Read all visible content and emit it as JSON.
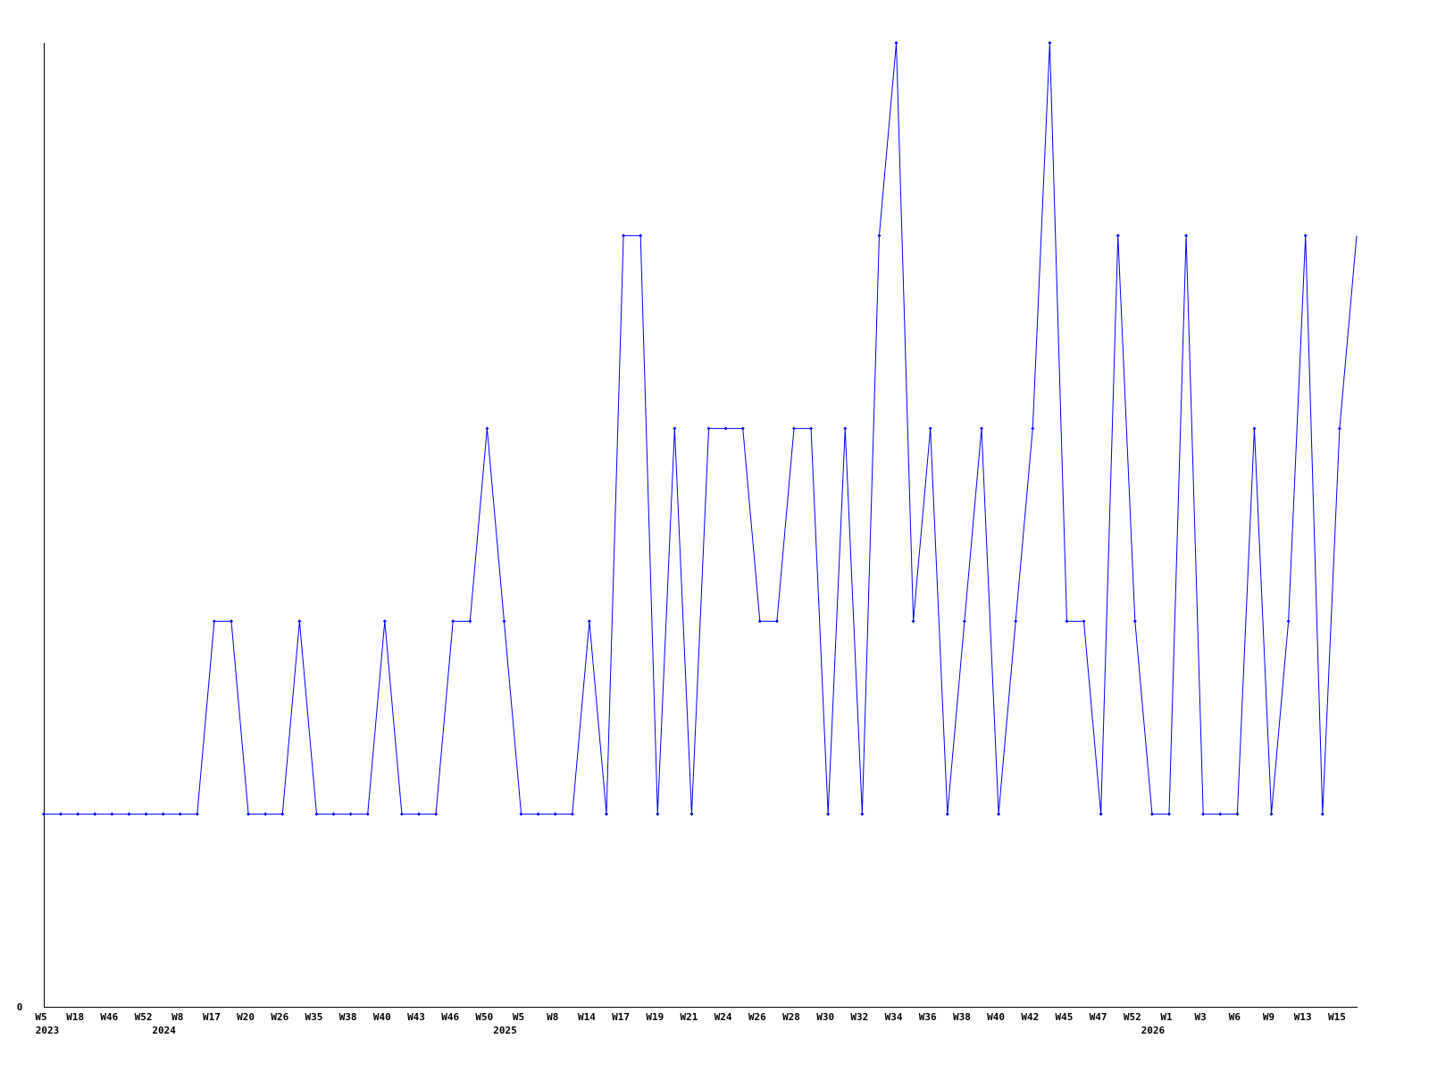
{
  "chart_data": {
    "type": "line",
    "title": "",
    "xlabel": "",
    "ylabel": "",
    "ylim": [
      0,
      5
    ],
    "y_tick_labels": [
      "0"
    ],
    "grid": false,
    "legend": "none",
    "line_color": "#0000ff",
    "axis_color": "#000000",
    "x_tick_labels": [
      "W5",
      "W18",
      "W46",
      "W52",
      "W8",
      "W17",
      "W20",
      "W26",
      "W35",
      "W38",
      "W40",
      "W43",
      "W46",
      "W50",
      "W5",
      "W8",
      "W14",
      "W17",
      "W19",
      "W21",
      "W24",
      "W26",
      "W28",
      "W30",
      "W32",
      "W34",
      "W36",
      "W38",
      "W40",
      "W42",
      "W45",
      "W47",
      "W52",
      "W1",
      "W3",
      "W6",
      "W9",
      "W13",
      "W15"
    ],
    "year_labels": [
      {
        "label": "2023",
        "index": 0
      },
      {
        "label": "2024",
        "index": 7
      },
      {
        "label": "2025",
        "index": 27
      },
      {
        "label": "2026",
        "index": 65
      }
    ],
    "values": [
      1,
      1,
      1,
      1,
      1,
      1,
      1,
      1,
      1,
      1,
      2,
      2,
      1,
      1,
      1,
      2,
      1,
      1,
      1,
      1,
      2,
      1,
      1,
      1,
      2,
      2,
      3,
      2,
      1,
      1,
      1,
      1,
      2,
      1,
      4,
      4,
      1,
      3,
      1,
      3,
      3,
      3,
      2,
      2,
      3,
      3,
      1,
      3,
      1,
      4,
      5,
      2,
      3,
      1,
      2,
      3,
      1,
      2,
      3,
      5,
      2,
      2,
      1,
      4,
      2,
      1,
      1,
      4,
      1,
      1,
      1,
      3,
      1,
      2,
      4,
      1,
      3,
      4
    ]
  }
}
